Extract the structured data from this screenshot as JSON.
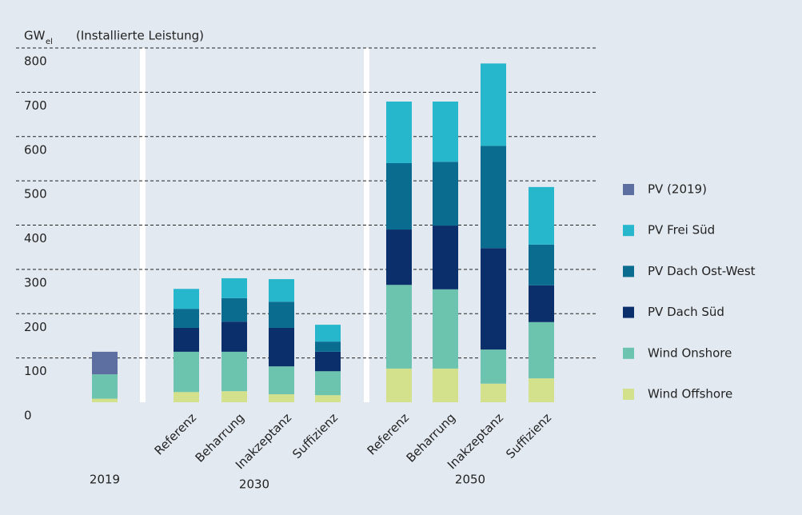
{
  "chart_data": {
    "type": "bar",
    "stacked": true,
    "y_label": "GW",
    "y_label_sub": "el",
    "y_label_note": "(Installierte Leistung)",
    "categories": [
      null,
      "Referenz",
      "Beharrung",
      "Inakzeptanz",
      "Suffizienz",
      "Referenz",
      "Beharrung",
      "Inakzeptanz",
      "Suffizienz"
    ],
    "group_labels": [
      "2019",
      "2030",
      "2050"
    ],
    "series": [
      {
        "name": "Wind Offshore",
        "color": "#d3e08c",
        "values": [
          8,
          23,
          25,
          18,
          16,
          76,
          76,
          42,
          54
        ]
      },
      {
        "name": "Wind Onshore",
        "color": "#6dc4ae",
        "values": [
          55,
          91,
          89,
          63,
          54,
          189,
          179,
          77,
          127
        ]
      },
      {
        "name": "PV Dach Süd",
        "color": "#0b2f6b",
        "values": [
          null,
          54,
          68,
          87,
          44,
          125,
          144,
          229,
          83
        ]
      },
      {
        "name": "PV Dach Ost-West",
        "color": "#0a6d90",
        "values": [
          null,
          43,
          53,
          59,
          23,
          150,
          144,
          231,
          92
        ]
      },
      {
        "name": "PV Frei Süd",
        "color": "#27b7cc",
        "values": [
          null,
          45,
          45,
          51,
          38,
          139,
          136,
          186,
          130
        ]
      },
      {
        "name": "PV (2019)",
        "color": "#5c6fa0",
        "values": [
          51,
          null,
          null,
          null,
          null,
          null,
          null,
          null,
          null
        ]
      }
    ],
    "ylim": [
      0,
      800
    ],
    "yticks": [
      0,
      100,
      200,
      300,
      400,
      500,
      600,
      700,
      800
    ],
    "grid": true,
    "legend": "right"
  }
}
